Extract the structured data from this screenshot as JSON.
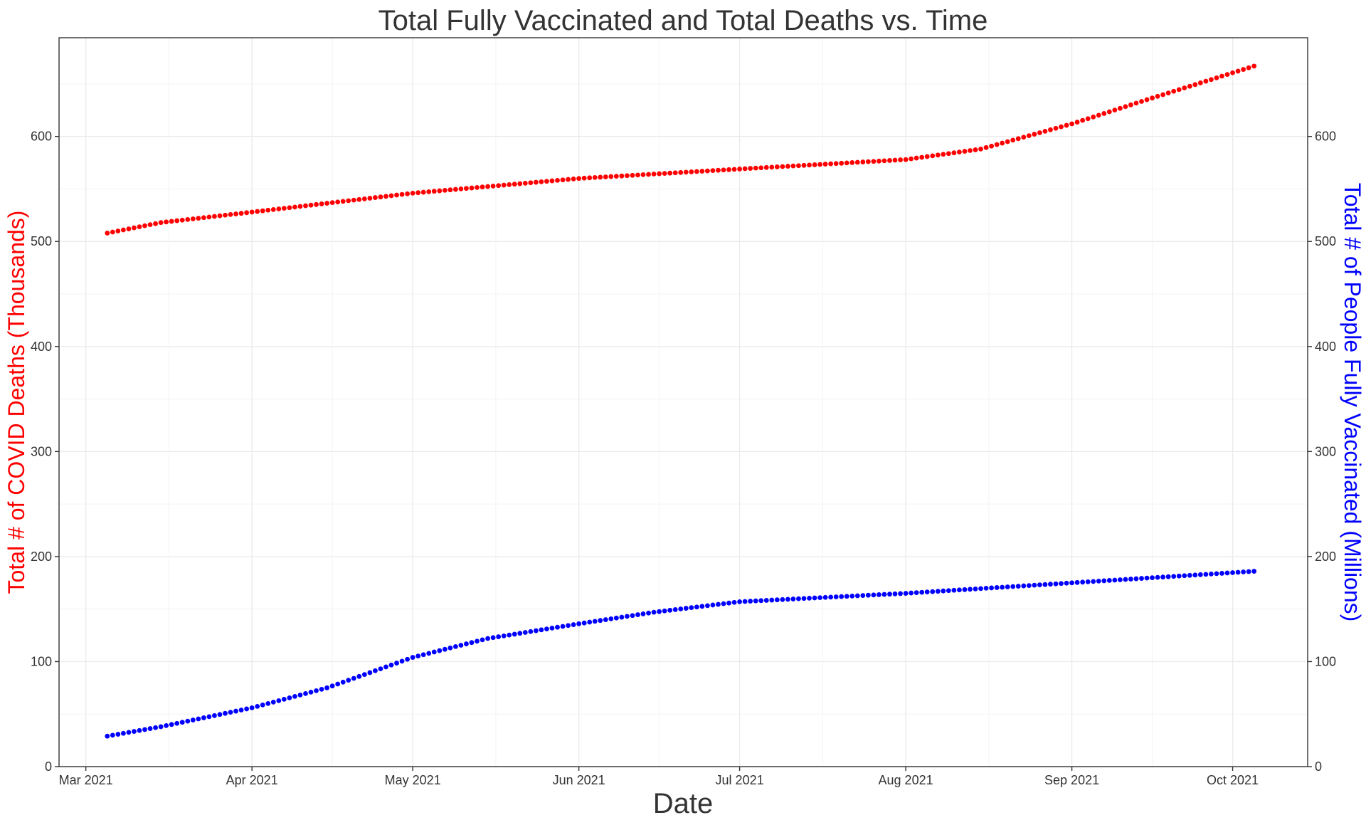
{
  "chart_data": {
    "type": "scatter",
    "title": "Total Fully Vaccinated and Total Deaths vs. Time",
    "xlabel": "Date",
    "ylabel": "Total # of COVID Deaths (Thousands)",
    "ylabel_right": "Total # of People Fully Vaccinated (Millions)",
    "xlim": [
      "2021-02-24",
      "2021-10-15"
    ],
    "ylim": [
      0,
      694
    ],
    "ylim_right": [
      0,
      694
    ],
    "x_ticks": [
      {
        "date": "2021-03-01",
        "label": "Mar 2021"
      },
      {
        "date": "2021-04-01",
        "label": "Apr 2021"
      },
      {
        "date": "2021-05-01",
        "label": "May 2021"
      },
      {
        "date": "2021-06-01",
        "label": "Jun 2021"
      },
      {
        "date": "2021-07-01",
        "label": "Jul 2021"
      },
      {
        "date": "2021-08-01",
        "label": "Aug 2021"
      },
      {
        "date": "2021-09-01",
        "label": "Sep 2021"
      },
      {
        "date": "2021-10-01",
        "label": "Oct 2021"
      }
    ],
    "y_ticks": [
      {
        "value": 0,
        "label": "0"
      },
      {
        "value": 100,
        "label": "100"
      },
      {
        "value": 200,
        "label": "200"
      },
      {
        "value": 300,
        "label": "300"
      },
      {
        "value": 400,
        "label": "400"
      },
      {
        "value": 500,
        "label": "500"
      },
      {
        "value": 600,
        "label": "600"
      }
    ],
    "grid": true,
    "legend": "none",
    "series": [
      {
        "axis": "left",
        "color": "#ff0000",
        "x_start": "2021-03-05",
        "x_end": "2021-10-05",
        "step_days": 1,
        "anchors": [
          {
            "x": "2021-03-05",
            "y": 508
          },
          {
            "x": "2021-03-15",
            "y": 518
          },
          {
            "x": "2021-04-01",
            "y": 528
          },
          {
            "x": "2021-05-01",
            "y": 546
          },
          {
            "x": "2021-06-01",
            "y": 560
          },
          {
            "x": "2021-07-01",
            "y": 569
          },
          {
            "x": "2021-08-01",
            "y": 578
          },
          {
            "x": "2021-08-15",
            "y": 588
          },
          {
            "x": "2021-09-01",
            "y": 612
          },
          {
            "x": "2021-09-15",
            "y": 635
          },
          {
            "x": "2021-10-05",
            "y": 667
          }
        ]
      },
      {
        "axis": "right",
        "color": "#0000ff",
        "x_start": "2021-03-05",
        "x_end": "2021-10-05",
        "step_days": 1,
        "anchors": [
          {
            "x": "2021-03-05",
            "y": 29
          },
          {
            "x": "2021-03-15",
            "y": 38
          },
          {
            "x": "2021-04-01",
            "y": 56
          },
          {
            "x": "2021-04-15",
            "y": 75
          },
          {
            "x": "2021-05-01",
            "y": 104
          },
          {
            "x": "2021-05-15",
            "y": 122
          },
          {
            "x": "2021-06-01",
            "y": 136
          },
          {
            "x": "2021-06-15",
            "y": 147
          },
          {
            "x": "2021-07-01",
            "y": 157
          },
          {
            "x": "2021-08-01",
            "y": 165
          },
          {
            "x": "2021-09-01",
            "y": 175
          },
          {
            "x": "2021-10-05",
            "y": 186
          }
        ]
      }
    ]
  }
}
